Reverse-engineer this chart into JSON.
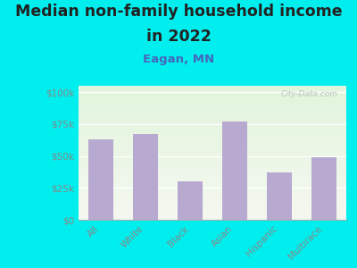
{
  "title_line1": "Median non-family household income",
  "title_line2": "in 2022",
  "subtitle": "Eagan, MN",
  "categories": [
    "All",
    "White",
    "Black",
    "Asian",
    "Hispanic",
    "Multirace"
  ],
  "values": [
    63000,
    67000,
    30000,
    77000,
    37000,
    49000
  ],
  "bar_color": "#b8a9d0",
  "background_outer": "#00eeee",
  "yticks": [
    0,
    25000,
    50000,
    75000,
    100000
  ],
  "ytick_labels": [
    "$0",
    "$25k",
    "$50k",
    "$75k",
    "$100k"
  ],
  "ylim": [
    0,
    105000
  ],
  "title_fontsize": 12.5,
  "subtitle_fontsize": 9.5,
  "subtitle_color": "#4466bb",
  "tick_color": "#888888",
  "title_color": "#222222",
  "watermark": "City-Data.com"
}
